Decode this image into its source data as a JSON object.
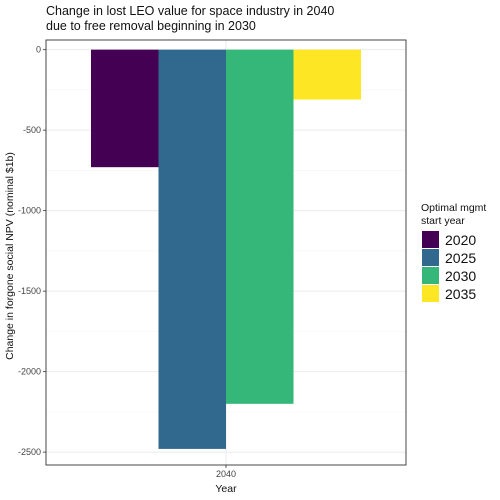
{
  "chart_data": {
    "type": "bar",
    "title_lines": [
      "Change in lost LEO value for space industry in 2040",
      "due to free removal beginning in 2030"
    ],
    "xlabel": "Year",
    "ylabel": "Change in forgone social NPV (nominal $1b)",
    "categories": [
      "2040"
    ],
    "series": [
      {
        "name": "2020",
        "values": [
          -730
        ],
        "color": "#440154"
      },
      {
        "name": "2025",
        "values": [
          -2480
        ],
        "color": "#31688E"
      },
      {
        "name": "2030",
        "values": [
          -2200
        ],
        "color": "#35B779"
      },
      {
        "name": "2035",
        "values": [
          -310
        ],
        "color": "#FDE725"
      }
    ],
    "ylim": [
      -2580,
      60
    ],
    "yticks": [
      0,
      -500,
      -1000,
      -1500,
      -2000,
      -2500
    ],
    "ytick_labels": [
      "0",
      "-500",
      "-1000",
      "-1500",
      "-2000",
      "-2500"
    ],
    "grid": true,
    "legend": {
      "title_lines": [
        "Optimal mgmt",
        "start year"
      ],
      "placement": "right"
    }
  }
}
